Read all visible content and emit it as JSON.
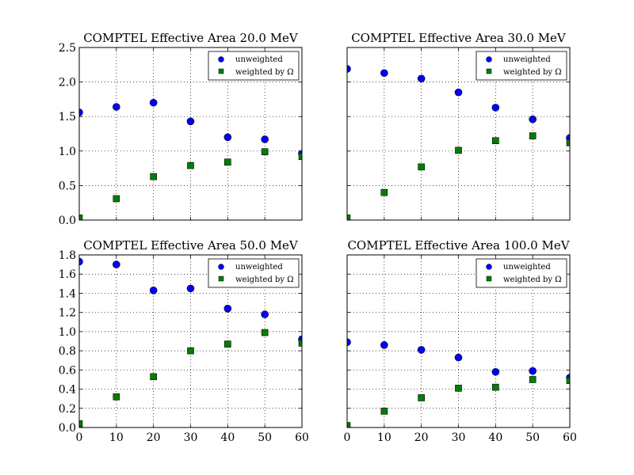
{
  "chart_data": [
    {
      "type": "scatter",
      "title": "COMPTEL Effective Area 20.0 MeV",
      "xlabel": "",
      "ylabel": "",
      "x": [
        0,
        10,
        20,
        30,
        40,
        50,
        60
      ],
      "series": [
        {
          "name": "unweighted",
          "values": [
            1.56,
            1.64,
            1.7,
            1.43,
            1.2,
            1.17,
            0.96
          ]
        },
        {
          "name": "weighted by Ω",
          "values": [
            0.03,
            0.31,
            0.63,
            0.79,
            0.84,
            0.99,
            0.92
          ]
        }
      ],
      "xlim": [
        0,
        60
      ],
      "ylim": [
        0,
        2.5
      ],
      "xticks": [
        "0",
        "10",
        "20",
        "30",
        "40",
        "50",
        "60"
      ],
      "yticks": [
        "0.0",
        "0.5",
        "1.0",
        "1.5",
        "2.0",
        "2.5"
      ],
      "show_xtick_labels": false,
      "show_ytick_labels": true,
      "grid": true,
      "legend": "top-right"
    },
    {
      "type": "scatter",
      "title": "COMPTEL Effective Area 30.0 MeV",
      "xlabel": "",
      "ylabel": "",
      "x": [
        0,
        10,
        20,
        30,
        40,
        50,
        60
      ],
      "series": [
        {
          "name": "unweighted",
          "values": [
            2.19,
            2.13,
            2.05,
            1.85,
            1.63,
            1.46,
            1.19
          ]
        },
        {
          "name": "weighted by Ω",
          "values": [
            0.03,
            0.4,
            0.77,
            1.01,
            1.15,
            1.22,
            1.12
          ]
        }
      ],
      "xlim": [
        0,
        60
      ],
      "ylim": [
        0,
        2.5
      ],
      "xticks": [
        "0",
        "10",
        "20",
        "30",
        "40",
        "50",
        "60"
      ],
      "yticks": [
        "0.0",
        "0.5",
        "1.0",
        "1.5",
        "2.0",
        "2.5"
      ],
      "show_xtick_labels": false,
      "show_ytick_labels": false,
      "grid": true,
      "legend": "top-right"
    },
    {
      "type": "scatter",
      "title": "COMPTEL Effective Area 50.0 MeV",
      "xlabel": "",
      "ylabel": "",
      "x": [
        0,
        10,
        20,
        30,
        40,
        50,
        60
      ],
      "series": [
        {
          "name": "unweighted",
          "values": [
            1.73,
            1.7,
            1.43,
            1.45,
            1.24,
            1.18,
            0.92
          ]
        },
        {
          "name": "weighted by Ω",
          "values": [
            0.04,
            0.32,
            0.53,
            0.8,
            0.87,
            0.99,
            0.88
          ]
        }
      ],
      "xlim": [
        0,
        60
      ],
      "ylim": [
        0,
        1.8
      ],
      "xticks": [
        "0",
        "10",
        "20",
        "30",
        "40",
        "50",
        "60"
      ],
      "yticks": [
        "0.0",
        "0.2",
        "0.4",
        "0.6",
        "0.8",
        "1.0",
        "1.2",
        "1.4",
        "1.6",
        "1.8"
      ],
      "show_xtick_labels": true,
      "show_ytick_labels": true,
      "grid": true,
      "legend": "top-right"
    },
    {
      "type": "scatter",
      "title": "COMPTEL Effective Area 100.0 MeV",
      "xlabel": "",
      "ylabel": "",
      "x": [
        0,
        10,
        20,
        30,
        40,
        50,
        60
      ],
      "series": [
        {
          "name": "unweighted",
          "values": [
            0.89,
            0.86,
            0.81,
            0.73,
            0.58,
            0.59,
            0.52
          ]
        },
        {
          "name": "weighted by Ω",
          "values": [
            0.02,
            0.17,
            0.31,
            0.41,
            0.42,
            0.5,
            0.49
          ]
        }
      ],
      "xlim": [
        0,
        60
      ],
      "ylim": [
        0,
        1.8
      ],
      "xticks": [
        "0",
        "10",
        "20",
        "30",
        "40",
        "50",
        "60"
      ],
      "yticks": [
        "0.0",
        "0.2",
        "0.4",
        "0.6",
        "0.8",
        "1.0",
        "1.2",
        "1.4",
        "1.6",
        "1.8"
      ],
      "show_xtick_labels": true,
      "show_ytick_labels": false,
      "grid": true,
      "legend": "top-right"
    }
  ],
  "colors": {
    "unweighted": "#0000ff",
    "weighted": "#007f00",
    "marker_edge": "#000000",
    "grid": "#000000",
    "axes": "#000000",
    "background": "#ffffff"
  },
  "markers": {
    "unweighted": "circle",
    "weighted": "square"
  }
}
